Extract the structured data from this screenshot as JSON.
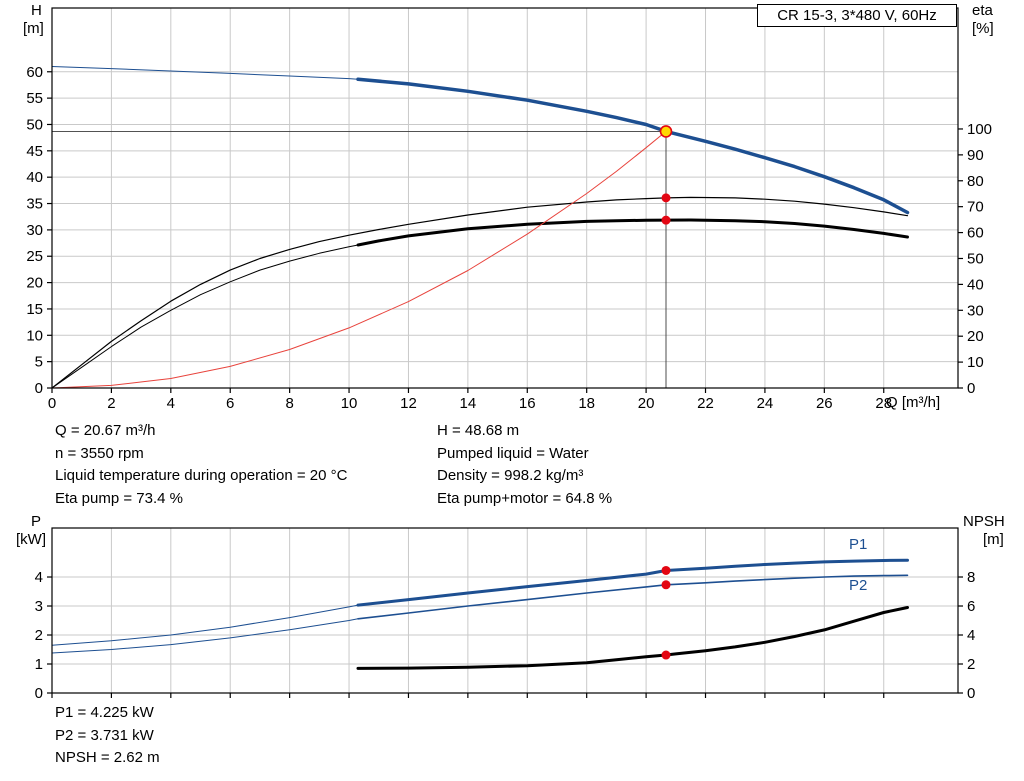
{
  "title_box": "CR 15-3, 3*480 V, 60Hz",
  "axes": {
    "h_symbol": "H",
    "h_unit": "[m]",
    "eta_symbol": "eta",
    "eta_unit": "[%]",
    "q_label": "Q [m³/h]",
    "p_symbol": "P",
    "p_unit": "[kW]",
    "npsh_symbol": "NPSH",
    "npsh_unit": "[m]"
  },
  "curve_labels": {
    "p1": "P1",
    "p2": "P2"
  },
  "info_top": {
    "left": [
      "Q = 20.67 m³/h",
      "n = 3550 rpm",
      "Liquid temperature during operation = 20 °C",
      "Eta pump = 73.4 %"
    ],
    "right": [
      "H = 48.68 m",
      "Pumped liquid = Water",
      "Density = 998.2 kg/m³",
      "Eta pump+motor = 64.8 %"
    ]
  },
  "info_bottom": [
    "P1 = 4.225 kW",
    "P2 = 3.731 kW",
    "NPSH = 2.62 m"
  ],
  "colors": {
    "curve_blue": "#1d4f91",
    "curve_red": "#e8433c",
    "marker_red": "#e30613",
    "duty_yellow": "#ffd800",
    "grid_gray": "#c9c9c9"
  },
  "chart_data": [
    {
      "type": "line",
      "name": "hq-eta-chart",
      "title": "CR 15-3, 3*480 V, 60Hz",
      "xlabel": "Q [m³/h]",
      "ylabel_left": "H [m]",
      "ylabel_right": "eta [%]",
      "x_range": [
        0,
        30.5
      ],
      "x_ticks": [
        0,
        2,
        4,
        6,
        8,
        10,
        12,
        14,
        16,
        18,
        20,
        22,
        24,
        26,
        28
      ],
      "x_tick_labels": true,
      "y_left": {
        "range": [
          0,
          72.1
        ],
        "ticks": [
          0,
          5,
          10,
          15,
          20,
          25,
          30,
          35,
          40,
          45,
          50,
          55,
          60
        ]
      },
      "y_right": {
        "range": [
          0,
          146.7
        ],
        "ticks": [
          0,
          10,
          20,
          30,
          40,
          50,
          60,
          70,
          80,
          90,
          100
        ]
      },
      "grid_color": "#c9c9c9",
      "marker_color": "#e30613",
      "duty_fill": "#ffd800",
      "duty_point": {
        "Q": 20.67,
        "H": 48.68,
        "eta_pump": 73.4,
        "eta_pump_motor": 64.8
      },
      "duty_lines": {
        "q": 20.67,
        "h": 48.68
      },
      "series": [
        {
          "name": "h-curve-extension",
          "axis": "left",
          "color": "#1d4f91",
          "width": 1,
          "points": [
            [
              0,
              61
            ],
            [
              2,
              60.6
            ],
            [
              4,
              60.15
            ],
            [
              6,
              59.7
            ],
            [
              8,
              59.2
            ],
            [
              10,
              58.7
            ],
            [
              10.3,
              58.6
            ]
          ]
        },
        {
          "name": "h-curve",
          "axis": "left",
          "color": "#1d4f91",
          "width": 3.5,
          "points": [
            [
              10.3,
              58.6
            ],
            [
              12,
              57.7
            ],
            [
              14,
              56.3
            ],
            [
              16,
              54.6
            ],
            [
              18,
              52.5
            ],
            [
              19,
              51.3
            ],
            [
              20,
              50.0
            ],
            [
              20.67,
              48.68
            ],
            [
              22,
              46.8
            ],
            [
              23,
              45.3
            ],
            [
              24,
              43.7
            ],
            [
              25,
              42.0
            ],
            [
              26,
              40.1
            ],
            [
              27,
              38.0
            ],
            [
              28,
              35.7
            ],
            [
              28.8,
              33.3
            ]
          ]
        },
        {
          "name": "eta-pump-curve",
          "axis": "right",
          "color": "#000000",
          "width": 1.2,
          "points": [
            [
              0,
              0
            ],
            [
              1,
              9
            ],
            [
              2,
              18
            ],
            [
              3,
              26
            ],
            [
              4,
              33.5
            ],
            [
              5,
              40
            ],
            [
              6,
              45.5
            ],
            [
              7,
              50
            ],
            [
              8,
              53.5
            ],
            [
              9,
              56.5
            ],
            [
              10,
              59
            ],
            [
              11,
              61.2
            ],
            [
              12,
              63.2
            ],
            [
              14,
              66.8
            ],
            [
              16,
              69.8
            ],
            [
              18,
              71.8
            ],
            [
              19,
              72.6
            ],
            [
              20,
              73.1
            ],
            [
              20.67,
              73.4
            ],
            [
              21.5,
              73.6
            ],
            [
              23,
              73.4
            ],
            [
              24,
              72.9
            ],
            [
              25,
              72.1
            ],
            [
              26,
              71.0
            ],
            [
              27,
              69.6
            ],
            [
              28,
              68.0
            ],
            [
              28.8,
              66.5
            ]
          ]
        },
        {
          "name": "eta-pump-motor-extension",
          "axis": "right",
          "color": "#000000",
          "width": 1,
          "points": [
            [
              0,
              0
            ],
            [
              1,
              8
            ],
            [
              2,
              16
            ],
            [
              3,
              23.5
            ],
            [
              4,
              30
            ],
            [
              5,
              36
            ],
            [
              6,
              41
            ],
            [
              7,
              45.5
            ],
            [
              8,
              49
            ],
            [
              9,
              52
            ],
            [
              10,
              54.5
            ],
            [
              10.3,
              55.2
            ]
          ]
        },
        {
          "name": "eta-pump-motor-curve",
          "axis": "right",
          "color": "#000000",
          "width": 3,
          "points": [
            [
              10.3,
              55.2
            ],
            [
              11,
              56.8
            ],
            [
              12,
              58.7
            ],
            [
              14,
              61.5
            ],
            [
              16,
              63.2
            ],
            [
              18,
              64.3
            ],
            [
              19,
              64.6
            ],
            [
              20,
              64.75
            ],
            [
              20.67,
              64.8
            ],
            [
              21.5,
              64.85
            ],
            [
              23,
              64.6
            ],
            [
              24,
              64.2
            ],
            [
              25,
              63.5
            ],
            [
              26,
              62.5
            ],
            [
              27,
              61.2
            ],
            [
              28,
              59.7
            ],
            [
              28.8,
              58.3
            ]
          ]
        },
        {
          "name": "system-curve",
          "axis": "left",
          "color": "#e8433c",
          "width": 1,
          "points": [
            [
              0,
              0
            ],
            [
              2,
              0.5
            ],
            [
              4,
              1.8
            ],
            [
              6,
              4.1
            ],
            [
              8,
              7.3
            ],
            [
              10,
              11.4
            ],
            [
              12,
              16.4
            ],
            [
              14,
              22.3
            ],
            [
              16,
              29.2
            ],
            [
              18,
              36.9
            ],
            [
              19,
              41.1
            ],
            [
              20,
              45.6
            ],
            [
              20.67,
              48.68
            ]
          ]
        }
      ],
      "markers": [
        {
          "axis": "left",
          "x": 20.67,
          "y": 48.68,
          "style": "duty"
        },
        {
          "axis": "right",
          "x": 20.67,
          "y": 73.4,
          "style": "dot"
        },
        {
          "axis": "right",
          "x": 20.67,
          "y": 64.8,
          "style": "dot"
        }
      ]
    },
    {
      "type": "line",
      "name": "power-npsh-chart",
      "xlabel": "",
      "ylabel_left": "P [kW]",
      "ylabel_right": "NPSH [m]",
      "x_range": [
        0,
        30.5
      ],
      "x_ticks": [
        0,
        2,
        4,
        6,
        8,
        10,
        12,
        14,
        16,
        18,
        20,
        22,
        24,
        26,
        28
      ],
      "x_tick_labels": false,
      "y_left": {
        "range": [
          0,
          5.69
        ],
        "ticks": [
          0,
          1,
          2,
          3,
          4
        ]
      },
      "y_right": {
        "range": [
          0,
          11.38
        ],
        "ticks": [
          0,
          2,
          4,
          6,
          8
        ]
      },
      "grid_color": "#c9c9c9",
      "marker_color": "#e30613",
      "duty_fill": "#ffd800",
      "duty_point": {
        "Q": 20.67,
        "P1": 4.225,
        "P2": 3.731,
        "NPSH": 2.62
      },
      "series": [
        {
          "name": "p1-extension",
          "axis": "left",
          "color": "#1d4f91",
          "width": 1,
          "points": [
            [
              0,
              1.65
            ],
            [
              2,
              1.8
            ],
            [
              4,
              2.0
            ],
            [
              6,
              2.27
            ],
            [
              8,
              2.6
            ],
            [
              10,
              2.97
            ],
            [
              10.3,
              3.03
            ]
          ]
        },
        {
          "name": "p1-curve",
          "axis": "left",
          "color": "#1d4f91",
          "width": 3,
          "points": [
            [
              10.3,
              3.03
            ],
            [
              12,
              3.22
            ],
            [
              14,
              3.45
            ],
            [
              16,
              3.67
            ],
            [
              18,
              3.88
            ],
            [
              20,
              4.1
            ],
            [
              20.67,
              4.225
            ],
            [
              22,
              4.3
            ],
            [
              23,
              4.37
            ],
            [
              24,
              4.43
            ],
            [
              25,
              4.48
            ],
            [
              26,
              4.52
            ],
            [
              27,
              4.55
            ],
            [
              28,
              4.57
            ],
            [
              28.8,
              4.58
            ]
          ]
        },
        {
          "name": "p2-extension",
          "axis": "left",
          "color": "#1d4f91",
          "width": 1,
          "points": [
            [
              0,
              1.38
            ],
            [
              2,
              1.5
            ],
            [
              4,
              1.67
            ],
            [
              6,
              1.9
            ],
            [
              8,
              2.18
            ],
            [
              10,
              2.5
            ],
            [
              10.3,
              2.56
            ]
          ]
        },
        {
          "name": "p2-curve",
          "axis": "left",
          "color": "#1d4f91",
          "width": 1.6,
          "points": [
            [
              10.3,
              2.56
            ],
            [
              12,
              2.76
            ],
            [
              14,
              3.0
            ],
            [
              16,
              3.22
            ],
            [
              18,
              3.45
            ],
            [
              20,
              3.66
            ],
            [
              20.67,
              3.731
            ],
            [
              22,
              3.8
            ],
            [
              23,
              3.86
            ],
            [
              24,
              3.91
            ],
            [
              25,
              3.96
            ],
            [
              26,
              4.0
            ],
            [
              27,
              4.03
            ],
            [
              28,
              4.05
            ],
            [
              28.8,
              4.06
            ]
          ]
        },
        {
          "name": "npsh-curve",
          "axis": "right",
          "color": "#000000",
          "width": 3,
          "points": [
            [
              10.3,
              1.7
            ],
            [
              12,
              1.72
            ],
            [
              14,
              1.78
            ],
            [
              16,
              1.88
            ],
            [
              18,
              2.08
            ],
            [
              19,
              2.3
            ],
            [
              20,
              2.5
            ],
            [
              20.67,
              2.62
            ],
            [
              21,
              2.7
            ],
            [
              22,
              2.92
            ],
            [
              23,
              3.18
            ],
            [
              24,
              3.5
            ],
            [
              25,
              3.9
            ],
            [
              26,
              4.35
            ],
            [
              27,
              4.95
            ],
            [
              28,
              5.55
            ],
            [
              28.8,
              5.9
            ]
          ]
        }
      ],
      "markers": [
        {
          "axis": "left",
          "x": 20.67,
          "y": 4.225,
          "style": "dot"
        },
        {
          "axis": "left",
          "x": 20.67,
          "y": 3.731,
          "style": "dot"
        },
        {
          "axis": "right",
          "x": 20.67,
          "y": 2.62,
          "style": "dot"
        }
      ]
    }
  ]
}
